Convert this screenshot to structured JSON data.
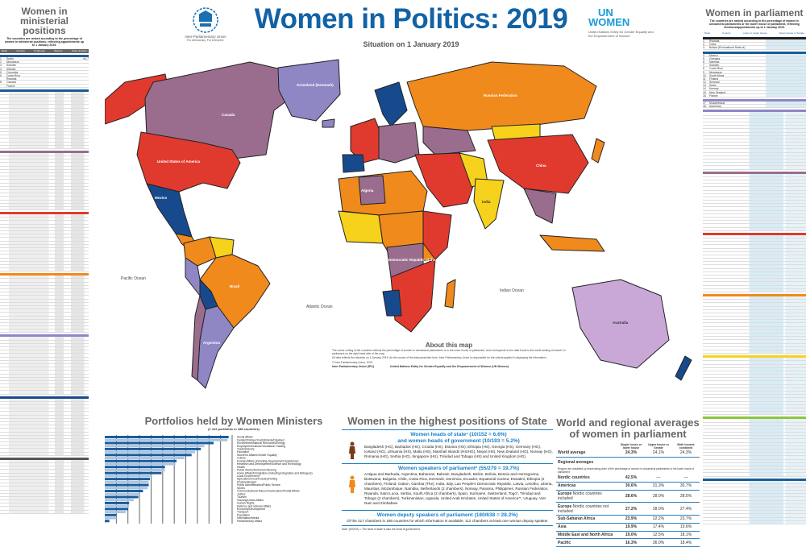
{
  "header": {
    "title": "Women in Politics: 2019",
    "subtitle": "Situation on 1 January 2019",
    "ipu_logo": {
      "year": "1889",
      "name": "Inter-Parliamentary Union",
      "tagline": "For democracy. For everyone."
    },
    "unwomen_logo": {
      "line1": "UN",
      "line2": "WOMEN",
      "caption": "United Nations Entity for Gender Equality and the Empowerment of Women"
    }
  },
  "colors": {
    "title_blue": "#1262a6",
    "red": "#e03a2e",
    "orange": "#f08a1c",
    "purple": "#9a6d8e",
    "lavender": "#8f86c4",
    "dark_blue": "#174a8c",
    "yellow": "#f7d21c"
  },
  "left_panel": {
    "title": "Women in ministerial positions",
    "note": "The countries are ranked according to the percentage of women in ministerial positions, reflecting appointments up to 1 January 2019.",
    "columns": [
      "Rank",
      "Country",
      "% Women",
      "Women",
      "Total ministers"
    ],
    "rows": [
      {
        "rank": "1",
        "country": "Spain",
        "value": "64.7"
      },
      {
        "rank": "2",
        "country": "Nicaragua",
        "value": ""
      },
      {
        "rank": "3",
        "country": "Sweden",
        "value": ""
      },
      {
        "rank": "4",
        "country": "Albania",
        "value": ""
      },
      {
        "rank": "5",
        "country": "Colombia",
        "value": ""
      },
      {
        "rank": "6",
        "country": "Costa Rica",
        "value": ""
      },
      {
        "rank": "",
        "country": "Rwanda",
        "value": ""
      },
      {
        "rank": "8",
        "country": "Canada",
        "value": ""
      },
      {
        "rank": "",
        "country": "France",
        "value": ""
      }
    ]
  },
  "right_panel": {
    "title": "Women in parliament",
    "note": "The countries are ranked according to the percentage of women in unicameral parliaments or the lower house of parliament, reflecting elections/appointments up to 1 January 2019.",
    "columns": [
      "Rank",
      "Country",
      "Lower or single House",
      "Upper House or Senate"
    ],
    "rows": [
      {
        "rank": "1",
        "country": "Rwanda"
      },
      {
        "rank": "2",
        "country": "Cuba"
      },
      {
        "rank": "3",
        "country": "Bolivia (Plurinational State of)"
      },
      {
        "rank": "4",
        "country": "Mexico"
      },
      {
        "rank": "5",
        "country": "Grenada"
      },
      {
        "rank": "6",
        "country": "Namibia"
      },
      {
        "rank": "7",
        "country": "Sweden"
      },
      {
        "rank": "8",
        "country": "Costa Rica"
      },
      {
        "rank": "9",
        "country": "Nicaragua"
      },
      {
        "rank": "10",
        "country": "South Africa"
      },
      {
        "rank": "11",
        "country": "Finland"
      },
      {
        "rank": "12",
        "country": "Senegal"
      },
      {
        "rank": "13",
        "country": "Spain"
      },
      {
        "rank": "14",
        "country": "Norway"
      },
      {
        "rank": "15",
        "country": "New Zealand"
      },
      {
        "rank": "16",
        "country": "France"
      },
      {
        "rank": "17",
        "country": "Mozambique"
      },
      {
        "rank": "18",
        "country": "Argentina"
      }
    ]
  },
  "map": {
    "labels": [
      "Canada",
      "United States of America",
      "Greenland (Denmark)",
      "Mexico",
      "Brazil",
      "Russian Federation",
      "China",
      "India",
      "Australia",
      "Argentina",
      "Algeria",
      "Democratic Republic of the Congo"
    ],
    "oceans": [
      "Pacific Ocean",
      "Atlantic Ocean",
      "Indian Ocean"
    ]
  },
  "about": {
    "title": "About this map",
    "paragraphs": [
      "The colour coding of the countries reflects the percentage of women in unicameral parliaments or in the lower house of parliament, and corresponds to the data found in the world ranking of women in parliament on the right-hand side of the map.",
      "All data reflects the situation on 1 January 2019. As the source of the data presented here, Inter-Parliamentary Union is responsible for the criteria applied in displaying the information.",
      "© Inter-Parliamentary Union, 2019"
    ],
    "contacts": [
      "Inter-Parliamentary Union (IPU)",
      "United Nations Entity for Gender Equality and the Empowerment of Women (UN Women)"
    ]
  },
  "chart_data": {
    "type": "bar",
    "title": "Portfolios held by Women Ministers",
    "subtitle": "(1 412 portfolios in 188 countries)",
    "orientation": "horizontal",
    "xlim": [
      0,
      110
    ],
    "grid": true,
    "categories": [
      "Social Affairs",
      "Family/Children/Youth/Elderly/Disabled",
      "Environment/Natural Resources/Energy",
      "Employment/Labour/Vocational Training",
      "Trade/Industry",
      "Education",
      "Women's Affairs/Gender Equality",
      "Culture",
      "Foreign Affairs (including Development Assistance)",
      "Research and Development/Science and Technology",
      "Health",
      "Public Works/Territorial Planning",
      "Home Affairs/Immigration (including Integration and Refugees)",
      "Local Government",
      "Agriculture/Food/Forestry/Fishing",
      "Finance/Budget",
      "Public Administration/Public Service",
      "Sports",
      "Communications/Telecommunications/Postal Affairs",
      "Justice",
      "Tourism",
      "Housing/Urban Affairs",
      "Human Rights",
      "Defence and Veteran Affairs",
      "Economy/Development",
      "Transport",
      "Population",
      "Information/Media",
      "Parliamentary Affairs"
    ],
    "values": [
      107,
      106,
      94,
      86,
      83,
      78,
      75,
      69,
      62,
      61,
      52,
      52,
      49,
      41,
      39,
      38,
      38,
      37,
      33,
      30,
      29,
      25,
      21,
      21,
      20,
      18,
      10,
      10,
      4
    ]
  },
  "highest_positions": {
    "title": "Women in the highest positions of State",
    "heads": {
      "heading1": "Women heads of state¹ (10/152 = 6.6%)",
      "heading2": "and women heads of government (10/193 = 5.2%)",
      "list": "Bangladesh (HG), Barbados (HG), Croatia (HS), Estonia (HS), Ethiopia (HS), Georgia (HS), Germany (HG), Iceland (HG), Lithuania (HS), Malta (HS), Marshall Islands (HS/HG), Nepal (HS), New Zealand (HG), Norway (HG), Romania (HG), Serbia (HG), Singapore (HS), Trinidad and Tobago (HS) and United Kingdom (HG)."
    },
    "speakers": {
      "heading": "Women speakers of parliament² (55/279 = 19.7%)",
      "list": "Antigua and Barbuda, Argentina, Bahamas, Bahrain, Bangladesh, Belize, Bolivia, Bosnia and Herzegovina, Botswana, Bulgaria, Chile, Costa Rica, Denmark, Dominica, Ecuador, Equatorial Guinea, Eswatini, Ethiopia (2 chambers), Finland, Gabon, Gambia (The), India, Italy, Lao People's Democratic Republic, Latvia, Lesotho, Liberia, Mauritius, Mozambique, Namibia, Netherlands (2 chambers), Norway, Panama, Philippines, Russian Federation, Rwanda, Saint Lucia, Serbia, South Africa (2 chambers), Spain, Suriname, Switzerland, Togo*, Trinidad and Tobago (2 chambers), Turkmenistan, Uganda, United Arab Emirates, United States of America**, Uruguay, Viet Nam and Zimbabwe."
    },
    "deputies": {
      "heading": "Women deputy speakers of parliament (180/638 = 28.2%)",
      "text": "Of the 217 chambers in 188 countries for which information is available, 112 chambers at least one woman deputy speaker"
    },
    "notes": "Note: (HS/HG) = The head of state is also the head of government."
  },
  "averages": {
    "title_line1": "World and regional averages",
    "title_line2": "of women in parliament",
    "columns": [
      "Single house or lower house",
      "Upper house or Senate",
      "Both houses combined"
    ],
    "world": {
      "label": "World average",
      "values": [
        "24.3%",
        "24.1%",
        "24.3%"
      ]
    },
    "regional_heading": "Regional averages",
    "regional_note": "Regions are classified by descending order of the percentage of women in unicameral parliaments or the lower house of parliament.",
    "regions": [
      {
        "label": "Nordic countries",
        "values": [
          "42.5%",
          "—",
          "—"
        ]
      },
      {
        "label": "Americas",
        "values": [
          "30.6%",
          "31.3%",
          "30.7%"
        ]
      },
      {
        "label": "Europe",
        "qualifier": "Nordic countries included",
        "values": [
          "28.6%",
          "28.0%",
          "28.5%"
        ]
      },
      {
        "label": "Europe",
        "qualifier": "Nordic countries not included",
        "values": [
          "27.2%",
          "28.0%",
          "27.4%"
        ]
      },
      {
        "label": "Sub-Saharan Africa",
        "values": [
          "23.9%",
          "22.2%",
          "23.7%"
        ]
      },
      {
        "label": "Asia",
        "values": [
          "19.9%",
          "17.4%",
          "19.6%"
        ]
      },
      {
        "label": "Middle East and North Africa",
        "values": [
          "19.0%",
          "12.5%",
          "18.1%"
        ]
      },
      {
        "label": "Pacific",
        "values": [
          "16.3%",
          "36.0%",
          "18.4%"
        ]
      }
    ]
  }
}
